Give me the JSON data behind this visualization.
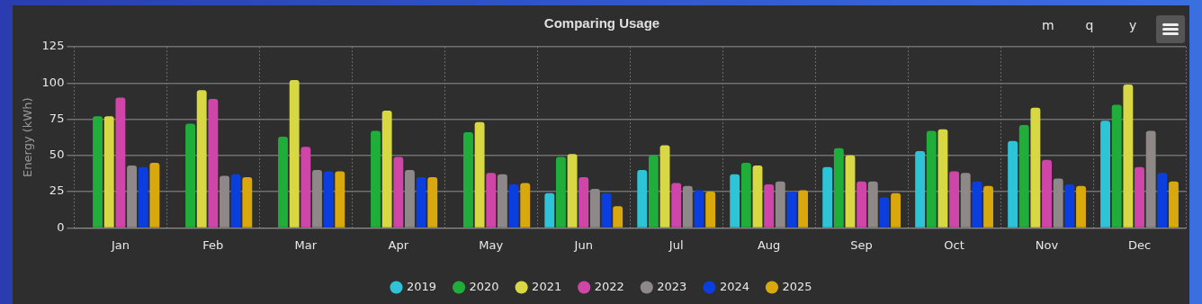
{
  "chart_data": {
    "type": "bar",
    "title": "Comparing Usage",
    "ylabel": "Energy (kWh)",
    "categories": [
      "Jan",
      "Feb",
      "Mar",
      "Apr",
      "May",
      "Jun",
      "Jul",
      "Aug",
      "Sep",
      "Oct",
      "Nov",
      "Dec"
    ],
    "series": [
      {
        "name": "2019",
        "color": "#2ec4d8",
        "values": [
          null,
          null,
          null,
          null,
          null,
          24,
          40,
          37,
          42,
          53,
          60,
          74
        ]
      },
      {
        "name": "2020",
        "color": "#1fae3a",
        "values": [
          77,
          72,
          63,
          67,
          66,
          49,
          50,
          45,
          55,
          67,
          71,
          85
        ]
      },
      {
        "name": "2021",
        "color": "#d8d845",
        "values": [
          77,
          95,
          102,
          81,
          73,
          51,
          57,
          43,
          50,
          68,
          83,
          99
        ]
      },
      {
        "name": "2022",
        "color": "#d046a8",
        "values": [
          90,
          89,
          56,
          49,
          38,
          35,
          31,
          30,
          32,
          39,
          47,
          42
        ]
      },
      {
        "name": "2023",
        "color": "#8e8888",
        "values": [
          43,
          36,
          40,
          40,
          37,
          27,
          29,
          32,
          32,
          38,
          34,
          67
        ]
      },
      {
        "name": "2024",
        "color": "#0b3ede",
        "values": [
          42,
          37,
          39,
          35,
          30,
          24,
          26,
          25,
          21,
          32,
          30,
          38
        ]
      },
      {
        "name": "2025",
        "color": "#d8a80c",
        "values": [
          45,
          35,
          39,
          35,
          31,
          15,
          25,
          26,
          24,
          29,
          29,
          32
        ]
      }
    ],
    "annotations": [
      "m",
      "q",
      "y"
    ],
    "ylim": [
      0,
      125
    ],
    "yticks": [
      0,
      25,
      50,
      75,
      100,
      125
    ],
    "grid": true,
    "legend": "bottom"
  }
}
